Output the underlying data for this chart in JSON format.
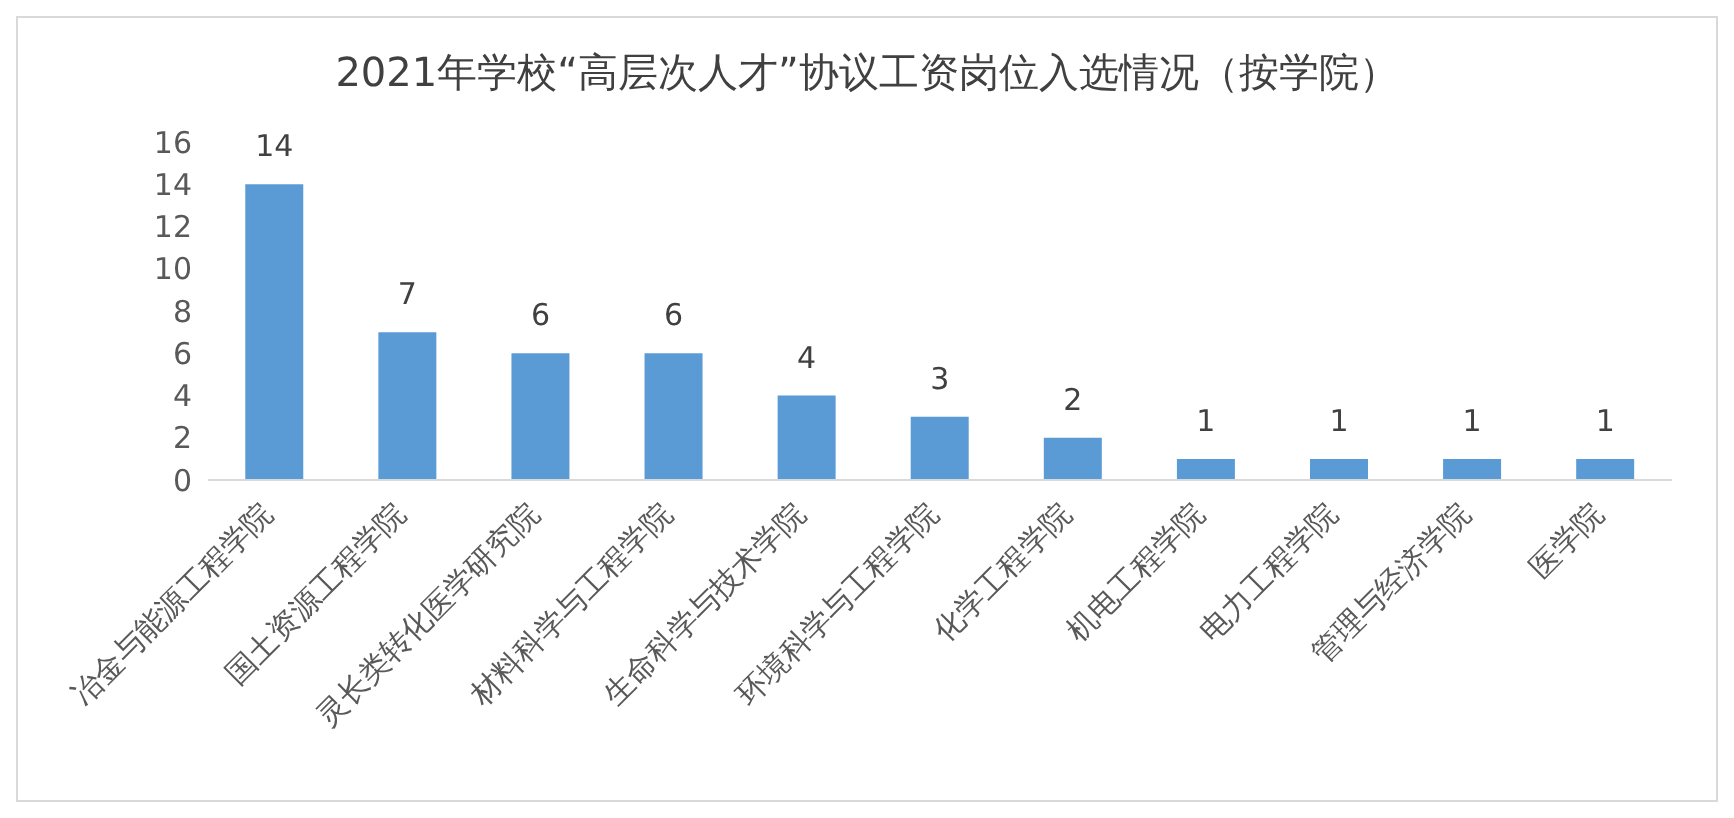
{
  "chart_data": {
    "type": "bar",
    "title": "2021年学校“高层次人才”协议工资岗位入选情况（按学院）",
    "categories": [
      "冶金与能源工程学院",
      "国土资源工程学院",
      "灵长类转化医学研究院",
      "材料科学与工程学院",
      "生命科学与技术学院",
      "环境科学与工程学院",
      "化学工程学院",
      "机电工程学院",
      "电力工程学院",
      "管理与经济学院",
      "医学院"
    ],
    "values": [
      14,
      7,
      6,
      6,
      4,
      3,
      2,
      1,
      1,
      1,
      1
    ],
    "color": "#5b9bd5",
    "ylim": [
      0,
      16
    ],
    "yticks": [
      0,
      2,
      4,
      6,
      8,
      10,
      12,
      14,
      16
    ],
    "data_labels": true,
    "grid": false
  }
}
